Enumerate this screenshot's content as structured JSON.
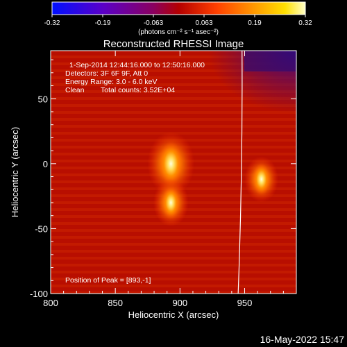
{
  "chart_data": {
    "type": "heatmap",
    "title": "Reconstructed RHESSI Image",
    "xlabel": "Heliocentric X (arcsec)",
    "ylabel": "Heliocentric Y (arcsec)",
    "xlim": [
      800,
      990
    ],
    "ylim": [
      -100,
      87
    ],
    "x_ticks": [
      800,
      850,
      900,
      950
    ],
    "y_ticks": [
      -100,
      -50,
      0,
      50
    ],
    "colorbar": {
      "min": -0.32,
      "max": 0.32,
      "ticks": [
        "-0.32",
        "-0.19",
        "-0.063",
        "0.063",
        "0.19",
        "0.32"
      ],
      "unit_label": "(photons cm⁻² s⁻¹ asec⁻²)",
      "colormap": "blue-purple-red-orange-yellow-white"
    },
    "annotations": {
      "time_range": "1-Sep-2014 12:44:16.000 to 12:50:16.000",
      "detectors": "Detectors: 3F 6F 9F, Att 0",
      "energy_range": "Energy Range: 3.0 - 6.0 keV",
      "clean": "Clean",
      "total_counts": "Total counts: 3.52E+04",
      "peak_position": "Position of Peak = [893,-1]"
    },
    "sources": [
      {
        "x": 893,
        "y": 0,
        "relative_intensity": 1.0
      },
      {
        "x": 893,
        "y": -30,
        "relative_intensity": 0.75
      },
      {
        "x": 963,
        "y": -12,
        "relative_intensity": 0.72
      }
    ],
    "limb_line": {
      "x_top": 948,
      "x_bottom": 945
    },
    "timestamp": "16-May-2022 15:47"
  }
}
